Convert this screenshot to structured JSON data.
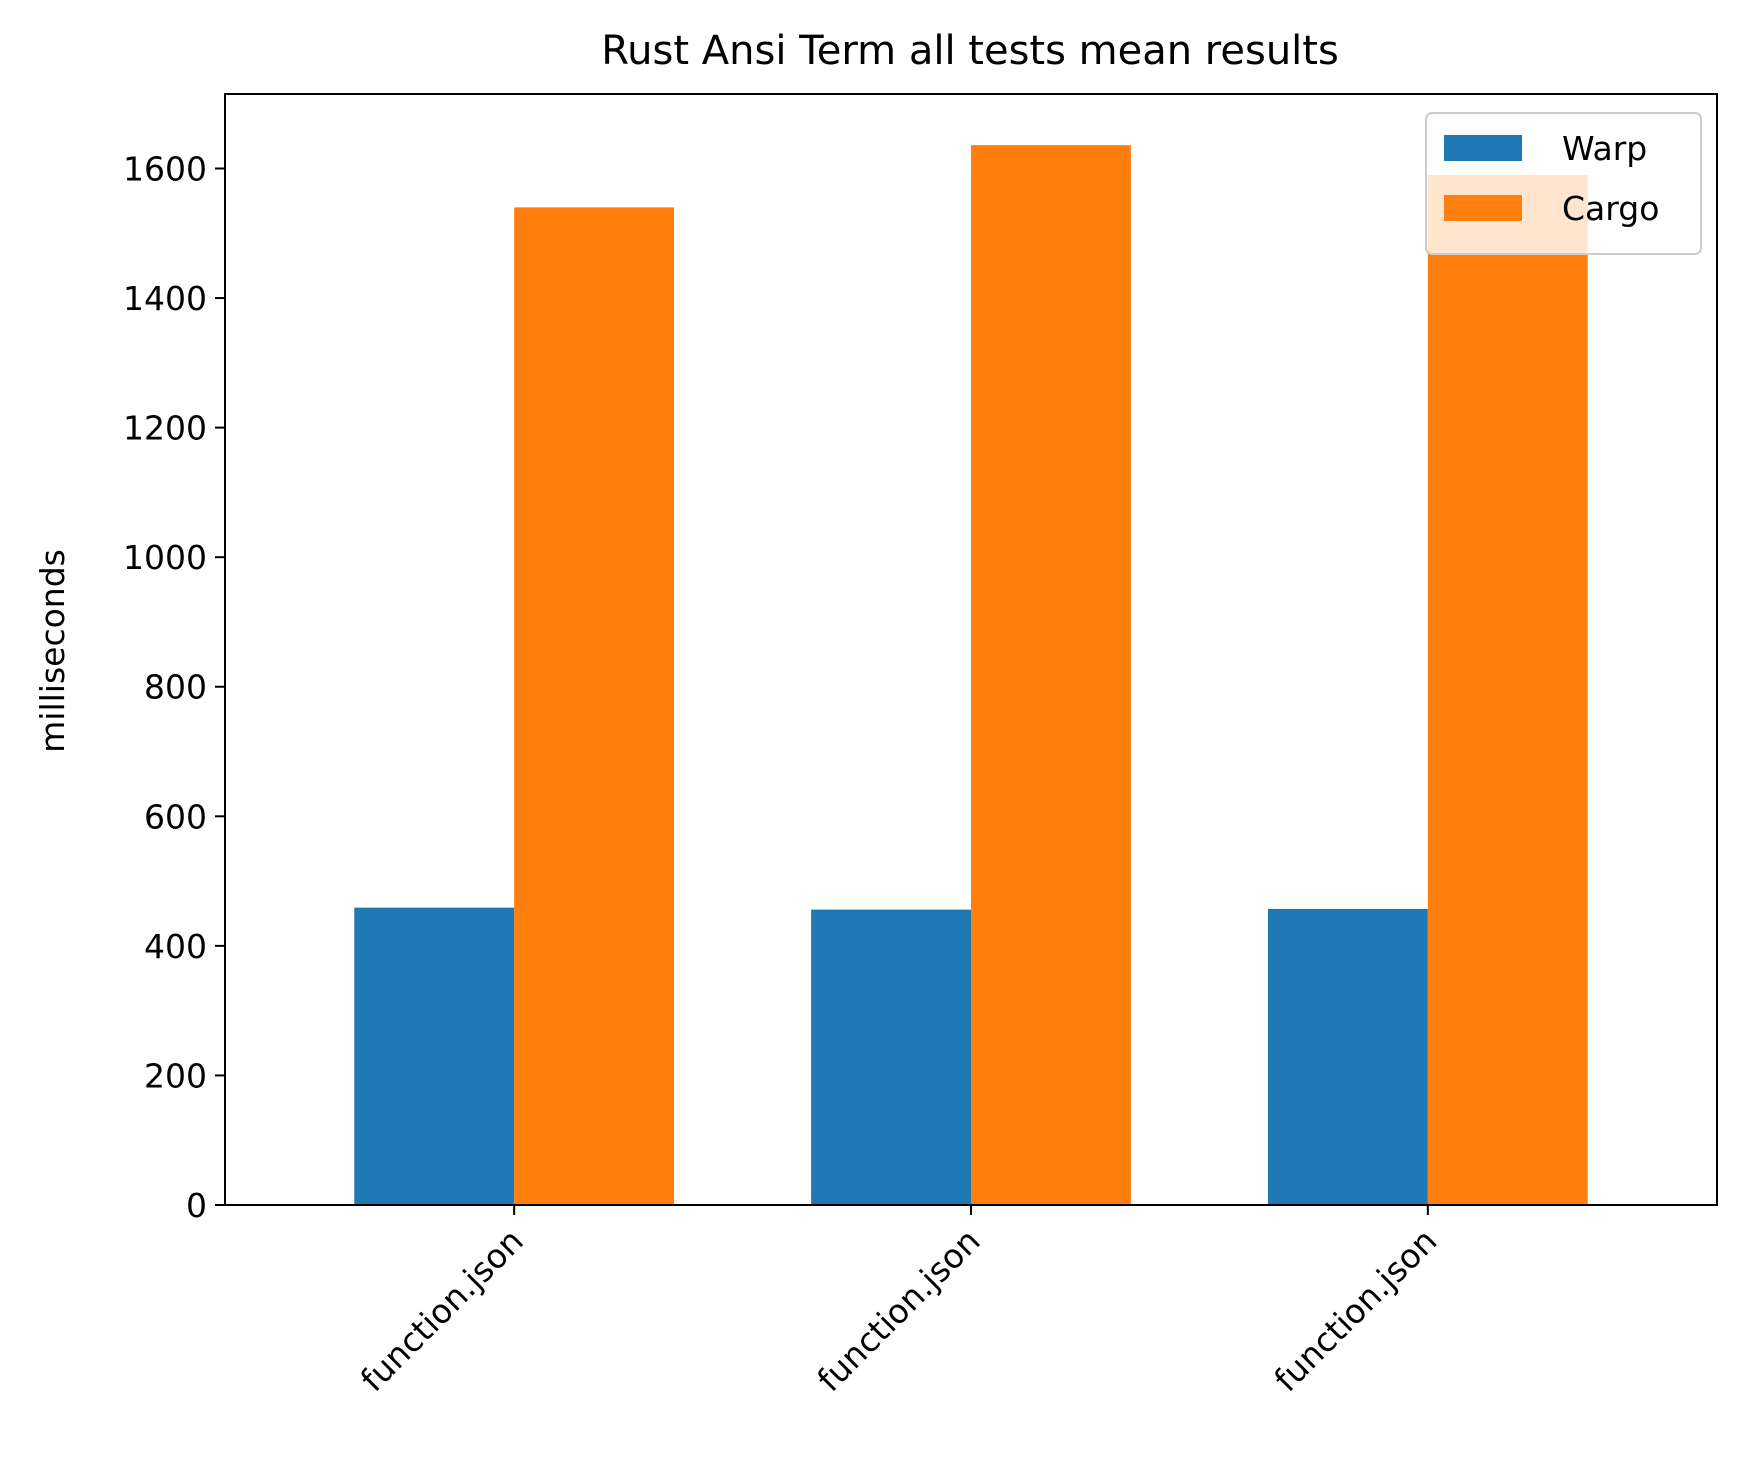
{
  "chart_data": {
    "type": "bar",
    "title": "Rust Ansi Term all tests mean results",
    "xlabel": "",
    "ylabel": "milliseconds",
    "categories": [
      "function.json",
      "function.json",
      "function.json"
    ],
    "series": [
      {
        "name": "Warp",
        "color": "#1f77b4",
        "values": [
          459,
          456,
          457
        ]
      },
      {
        "name": "Cargo",
        "color": "#ff7f0e",
        "values": [
          1540,
          1636,
          1590
        ]
      }
    ],
    "ylim": [
      0,
      1715
    ],
    "yticks": [
      0,
      200,
      400,
      600,
      800,
      1000,
      1200,
      1400,
      1600
    ],
    "grid": false,
    "legend_position": "top-right"
  }
}
